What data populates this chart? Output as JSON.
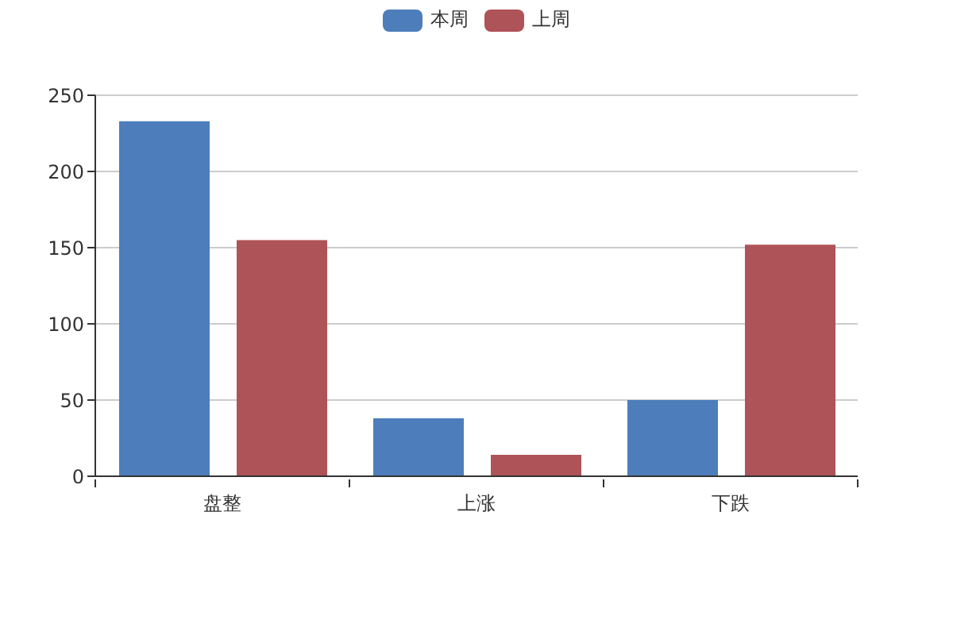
{
  "chart_data": {
    "type": "bar",
    "categories": [
      "盘整",
      "上涨",
      "下跌"
    ],
    "series": [
      {
        "name": "本周",
        "color": "#4d7ebb",
        "values": [
          233,
          38,
          50
        ]
      },
      {
        "name": "上周",
        "color": "#ae5357",
        "values": [
          155,
          14,
          152
        ]
      }
    ],
    "ylim": [
      0,
      250
    ],
    "yticks": [
      0,
      50,
      100,
      150,
      200,
      250
    ],
    "grid": "y",
    "legend": "top"
  }
}
